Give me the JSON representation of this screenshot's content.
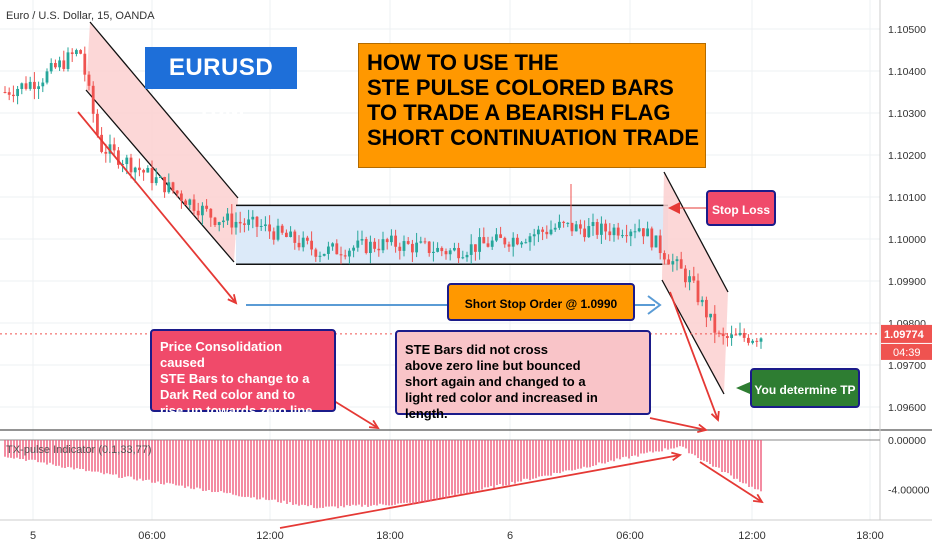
{
  "header": {
    "symbol_line": "Euro / U.S. Dollar, 15, OANDA"
  },
  "indicator": {
    "title": "TX-pulse Indicator (0.1,33,77)"
  },
  "labels": {
    "pair": "EURUSD 15M",
    "title": "HOW TO USE THE\nSTE PULSE COLORED BARS\nTO TRADE A BEARISH FLAG\nSHORT CONTINUATION TRADE",
    "stop_loss": "Stop Loss",
    "short_order": "Short Stop Order @ 1.0990",
    "consolidation_note": "Price Consolidation caused\nSTE Bars to change to a\nDark Red color and to\nrise up towards zero line",
    "bounce_note": "STE Bars did not cross\nabove zero line but bounced\nshort again and changed to a\nlight red color and increased in length.",
    "tp": "You determine TP"
  },
  "price_axis": {
    "ticks": [
      "1.10500",
      "1.10400",
      "1.10300",
      "1.10200",
      "1.10100",
      "1.10000",
      "1.09900",
      "1.09800",
      "1.09700",
      "1.09600"
    ],
    "current_price": "1.09774",
    "countdown": "04:39"
  },
  "indicator_axis": {
    "ticks": [
      "0.00000",
      "-4.00000"
    ]
  },
  "time_axis": {
    "ticks": [
      "5",
      "06:00",
      "12:00",
      "18:00",
      "6",
      "06:00",
      "12:00",
      "18:00"
    ]
  },
  "colors": {
    "bull": "#26a69a",
    "bear": "#ef5350",
    "flag_fill": "#d8e8f8",
    "channel_fill": "#fbd0d0",
    "histogram": "#f05a7a",
    "accent_red": "#e53935"
  },
  "chart_data": {
    "type": "candlestick",
    "symbol": "Euro / U.S. Dollar",
    "timeframe": "15",
    "x_ticks": [
      "5",
      "06:00",
      "12:00",
      "18:00",
      "6",
      "06:00",
      "12:00",
      "18:00"
    ],
    "y_range": [
      1.0955,
      1.1055
    ],
    "price_path": [
      {
        "t": "00:00",
        "p": 1.1035
      },
      {
        "t": "03:00",
        "p": 1.1038
      },
      {
        "t": "04:00",
        "p": 1.1045
      },
      {
        "t": "05:00",
        "p": 1.1022
      },
      {
        "t": "06:00",
        "p": 1.1018
      },
      {
        "t": "08:00",
        "p": 1.1012
      },
      {
        "t": "10:00",
        "p": 1.1005
      },
      {
        "t": "12:00",
        "p": 1.1003
      },
      {
        "t": "15:00",
        "p": 1.0997
      },
      {
        "t": "18:00",
        "p": 1.0999
      },
      {
        "t": "21:00",
        "p": 1.0997
      },
      {
        "t": "02:00",
        "p": 1.1001
      },
      {
        "t": "04:00",
        "p": 1.1003
      },
      {
        "t": "06:00",
        "p": 1.1002
      },
      {
        "t": "08:00",
        "p": 1.1003
      },
      {
        "t": "09:30",
        "p": 1.099
      },
      {
        "t": "10:30",
        "p": 1.0976
      },
      {
        "t": "11:30",
        "p": 1.0977
      }
    ],
    "flag_range": [
      1.0994,
      1.1008
    ],
    "short_entry": 1.099,
    "last_price": 1.09774,
    "indicator_ticks": [
      0,
      -4
    ],
    "indicator_min": -5.5
  }
}
